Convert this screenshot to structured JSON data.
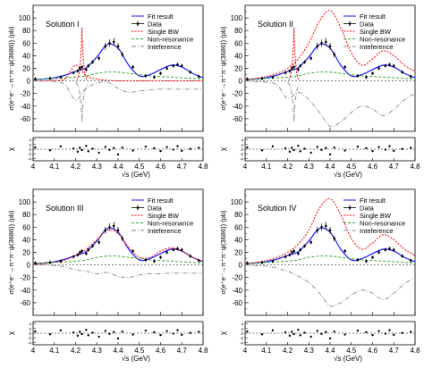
{
  "figure": {
    "legend_entries": [
      "Fit result",
      "Data",
      "Single BW",
      "Non-resonance",
      "Inteference"
    ],
    "y_label": "σ(e⁺e⁻→π⁺π⁻ψ(3686)) (pb)",
    "x_label": "√s (GeV)",
    "chi_label": "χ"
  },
  "colors": {
    "fit": "#1a1aff",
    "data": "#000000",
    "single_bw": "#ff0000",
    "non_resonance": "#33aa33",
    "interference": "#888888"
  },
  "chart_data": [
    {
      "type": "line",
      "title": "Solution I",
      "xlabel": "√s (GeV)",
      "ylabel": "σ(e⁺e⁻→π⁺π⁻ψ(3686)) (pb)",
      "xlim": [
        4.0,
        4.8
      ],
      "ylim": [
        -80,
        120
      ],
      "xticks": [
        4,
        4.1,
        4.2,
        4.3,
        4.4,
        4.5,
        4.6,
        4.7,
        4.8
      ],
      "yticks": [
        -60,
        -40,
        -20,
        0,
        20,
        40,
        60,
        80,
        100
      ],
      "legend": "top-right",
      "x": [
        4.0,
        4.05,
        4.1,
        4.15,
        4.2,
        4.25,
        4.3,
        4.35,
        4.4,
        4.45,
        4.5,
        4.55,
        4.6,
        4.65,
        4.7,
        4.75,
        4.8
      ],
      "series": [
        {
          "name": "Fit result",
          "values": [
            2,
            3,
            5,
            9,
            15,
            21,
            38,
            58,
            52,
            25,
            8,
            10,
            18,
            25,
            22,
            12,
            5
          ]
        },
        {
          "name": "Single BW",
          "values": [
            0,
            0,
            1,
            3,
            25,
            8,
            3,
            1,
            0,
            0,
            0,
            0,
            0,
            0,
            0,
            0,
            0
          ]
        },
        {
          "name": "Non-resonance",
          "values": [
            2,
            3,
            4,
            5,
            6,
            8,
            12,
            14,
            14,
            12,
            10,
            8,
            7,
            6,
            5,
            4,
            3
          ]
        },
        {
          "name": "Inteference",
          "values": [
            0,
            0,
            -1,
            -6,
            -30,
            -12,
            -4,
            -2,
            -12,
            -18,
            -16,
            -14,
            -13,
            -13,
            -13,
            -13,
            -13
          ]
        }
      ],
      "single_bw_peak": [
        4.23,
        85
      ],
      "interference_dip": [
        4.23,
        -65
      ],
      "data_points": [
        [
          4.01,
          3
        ],
        [
          4.08,
          4
        ],
        [
          4.13,
          6
        ],
        [
          4.19,
          13
        ],
        [
          4.21,
          16
        ],
        [
          4.22,
          20
        ],
        [
          4.23,
          22
        ],
        [
          4.25,
          18
        ],
        [
          4.26,
          24
        ],
        [
          4.28,
          30
        ],
        [
          4.31,
          36
        ],
        [
          4.34,
          55
        ],
        [
          4.36,
          60
        ],
        [
          4.38,
          62
        ],
        [
          4.4,
          55
        ],
        [
          4.42,
          42
        ],
        [
          4.47,
          22
        ],
        [
          4.53,
          8
        ],
        [
          4.57,
          6
        ],
        [
          4.6,
          12
        ],
        [
          4.63,
          20
        ],
        [
          4.66,
          24
        ],
        [
          4.68,
          26
        ],
        [
          4.7,
          24
        ],
        [
          4.74,
          14
        ],
        [
          4.78,
          7
        ]
      ],
      "residuals": [
        0.8,
        -0.5,
        1.2,
        0.3,
        -1.1,
        0.6,
        -0.4,
        1.4,
        -0.9,
        0.2,
        -1.5,
        1.0,
        -0.3,
        0.5,
        -2.3,
        0.7,
        -0.6,
        1.1,
        0.4,
        -0.8,
        0.9,
        -0.2,
        1.3,
        -0.7,
        0.1,
        0.6
      ]
    },
    {
      "type": "line",
      "title": "Solution II",
      "xlabel": "√s (GeV)",
      "ylabel": "σ(e⁺e⁻→π⁺π⁻ψ(3686)) (pb)",
      "xlim": [
        4.0,
        4.8
      ],
      "ylim": [
        -80,
        120
      ],
      "xticks": [
        4,
        4.1,
        4.2,
        4.3,
        4.4,
        4.5,
        4.6,
        4.7,
        4.8
      ],
      "yticks": [
        -60,
        -40,
        -20,
        0,
        20,
        40,
        60,
        80,
        100
      ],
      "legend": "top-right",
      "x": [
        4.0,
        4.05,
        4.1,
        4.15,
        4.2,
        4.25,
        4.3,
        4.35,
        4.4,
        4.45,
        4.5,
        4.55,
        4.6,
        4.65,
        4.7,
        4.75,
        4.8
      ],
      "series": [
        {
          "name": "Fit result",
          "values": [
            2,
            3,
            5,
            9,
            15,
            21,
            38,
            58,
            52,
            25,
            8,
            10,
            18,
            25,
            22,
            12,
            5
          ]
        },
        {
          "name": "Single BW",
          "values": [
            2,
            4,
            7,
            12,
            20,
            35,
            60,
            95,
            112,
            85,
            45,
            25,
            35,
            48,
            40,
            25,
            15
          ]
        },
        {
          "name": "Non-resonance",
          "values": [
            2,
            3,
            4,
            5,
            6,
            8,
            12,
            14,
            14,
            12,
            10,
            8,
            7,
            6,
            5,
            4,
            3
          ]
        },
        {
          "name": "Inteference",
          "values": [
            0,
            -1,
            -2,
            -6,
            -28,
            -18,
            -30,
            -50,
            -72,
            -65,
            -50,
            -40,
            -45,
            -55,
            -45,
            -30,
            -20
          ]
        }
      ],
      "single_bw_peak": [
        4.23,
        85
      ],
      "interference_dip": [
        4.23,
        -65
      ],
      "data_points": [
        [
          4.01,
          3
        ],
        [
          4.08,
          4
        ],
        [
          4.13,
          6
        ],
        [
          4.19,
          13
        ],
        [
          4.21,
          16
        ],
        [
          4.22,
          20
        ],
        [
          4.23,
          22
        ],
        [
          4.25,
          18
        ],
        [
          4.26,
          24
        ],
        [
          4.28,
          30
        ],
        [
          4.31,
          36
        ],
        [
          4.34,
          55
        ],
        [
          4.36,
          60
        ],
        [
          4.38,
          62
        ],
        [
          4.4,
          55
        ],
        [
          4.42,
          42
        ],
        [
          4.47,
          22
        ],
        [
          4.53,
          8
        ],
        [
          4.57,
          6
        ],
        [
          4.6,
          12
        ],
        [
          4.63,
          20
        ],
        [
          4.66,
          24
        ],
        [
          4.68,
          26
        ],
        [
          4.7,
          24
        ],
        [
          4.74,
          14
        ],
        [
          4.78,
          7
        ]
      ],
      "residuals": [
        0.8,
        -0.5,
        1.2,
        0.3,
        -1.1,
        0.6,
        -0.4,
        1.4,
        -0.9,
        0.2,
        -1.5,
        1.0,
        -0.3,
        0.5,
        -2.3,
        0.7,
        -0.6,
        1.1,
        0.4,
        -0.8,
        0.9,
        -0.2,
        1.3,
        -0.7,
        0.1,
        0.6
      ]
    },
    {
      "type": "line",
      "title": "Solution III",
      "xlabel": "√s (GeV)",
      "ylabel": "σ(e⁺e⁻→π⁺π⁻ψ(3686)) (pb)",
      "xlim": [
        4.0,
        4.8
      ],
      "ylim": [
        -80,
        120
      ],
      "xticks": [
        4,
        4.1,
        4.2,
        4.3,
        4.4,
        4.5,
        4.6,
        4.7,
        4.8
      ],
      "yticks": [
        -60,
        -40,
        -20,
        0,
        20,
        40,
        60,
        80,
        100
      ],
      "legend": "top-right",
      "x": [
        4.0,
        4.05,
        4.1,
        4.15,
        4.2,
        4.25,
        4.3,
        4.35,
        4.4,
        4.45,
        4.5,
        4.55,
        4.6,
        4.65,
        4.7,
        4.75,
        4.8
      ],
      "series": [
        {
          "name": "Fit result",
          "values": [
            2,
            3,
            5,
            9,
            15,
            21,
            38,
            58,
            52,
            25,
            8,
            10,
            18,
            25,
            22,
            12,
            5
          ]
        },
        {
          "name": "Single BW",
          "values": [
            1,
            2,
            4,
            8,
            15,
            25,
            40,
            55,
            50,
            28,
            12,
            12,
            22,
            27,
            22,
            12,
            6
          ]
        },
        {
          "name": "Non-resonance",
          "values": [
            2,
            3,
            4,
            5,
            6,
            8,
            12,
            14,
            14,
            12,
            10,
            8,
            7,
            6,
            5,
            4,
            3
          ]
        },
        {
          "name": "Inteference",
          "values": [
            0,
            0,
            -1,
            -3,
            -8,
            -10,
            -14,
            -12,
            -18,
            -20,
            -16,
            -14,
            -14,
            -13,
            -13,
            -13,
            -13
          ]
        }
      ],
      "data_points": [
        [
          4.01,
          3
        ],
        [
          4.08,
          4
        ],
        [
          4.13,
          6
        ],
        [
          4.19,
          13
        ],
        [
          4.21,
          16
        ],
        [
          4.22,
          20
        ],
        [
          4.23,
          22
        ],
        [
          4.25,
          18
        ],
        [
          4.26,
          24
        ],
        [
          4.28,
          30
        ],
        [
          4.31,
          36
        ],
        [
          4.34,
          55
        ],
        [
          4.36,
          60
        ],
        [
          4.38,
          62
        ],
        [
          4.4,
          55
        ],
        [
          4.42,
          42
        ],
        [
          4.47,
          22
        ],
        [
          4.53,
          8
        ],
        [
          4.57,
          6
        ],
        [
          4.6,
          12
        ],
        [
          4.63,
          20
        ],
        [
          4.66,
          24
        ],
        [
          4.68,
          26
        ],
        [
          4.7,
          24
        ],
        [
          4.74,
          14
        ],
        [
          4.78,
          7
        ]
      ],
      "residuals": [
        0.8,
        -0.5,
        1.2,
        0.3,
        -1.1,
        0.6,
        -0.4,
        1.4,
        -0.9,
        0.2,
        -1.5,
        1.0,
        -0.3,
        0.5,
        -2.3,
        0.7,
        -0.6,
        1.1,
        0.4,
        -0.8,
        0.9,
        -0.2,
        1.3,
        -0.7,
        0.1,
        0.6
      ]
    },
    {
      "type": "line",
      "title": "Solution IV",
      "xlabel": "√s (GeV)",
      "ylabel": "σ(e⁺e⁻→π⁺π⁻ψ(3686)) (pb)",
      "xlim": [
        4.0,
        4.8
      ],
      "ylim": [
        -80,
        120
      ],
      "xticks": [
        4,
        4.1,
        4.2,
        4.3,
        4.4,
        4.5,
        4.6,
        4.7,
        4.8
      ],
      "yticks": [
        -60,
        -40,
        -20,
        0,
        20,
        40,
        60,
        80,
        100
      ],
      "legend": "top-right",
      "x": [
        4.0,
        4.05,
        4.1,
        4.15,
        4.2,
        4.25,
        4.3,
        4.35,
        4.4,
        4.45,
        4.5,
        4.55,
        4.6,
        4.65,
        4.7,
        4.75,
        4.8
      ],
      "series": [
        {
          "name": "Fit result",
          "values": [
            2,
            3,
            5,
            9,
            15,
            21,
            38,
            58,
            52,
            25,
            8,
            10,
            18,
            25,
            22,
            12,
            5
          ]
        },
        {
          "name": "Single BW",
          "values": [
            2,
            4,
            7,
            12,
            20,
            33,
            55,
            90,
            105,
            80,
            42,
            25,
            35,
            48,
            40,
            25,
            15
          ]
        },
        {
          "name": "Non-resonance",
          "values": [
            2,
            3,
            4,
            5,
            6,
            8,
            12,
            14,
            14,
            12,
            10,
            8,
            7,
            6,
            5,
            4,
            3
          ]
        },
        {
          "name": "Inteference",
          "values": [
            0,
            -1,
            -2,
            -5,
            -10,
            -18,
            -28,
            -45,
            -65,
            -60,
            -48,
            -40,
            -45,
            -55,
            -45,
            -30,
            -20
          ]
        }
      ],
      "data_points": [
        [
          4.01,
          3
        ],
        [
          4.08,
          4
        ],
        [
          4.13,
          6
        ],
        [
          4.19,
          13
        ],
        [
          4.21,
          16
        ],
        [
          4.22,
          20
        ],
        [
          4.23,
          22
        ],
        [
          4.25,
          18
        ],
        [
          4.26,
          24
        ],
        [
          4.28,
          30
        ],
        [
          4.31,
          36
        ],
        [
          4.34,
          55
        ],
        [
          4.36,
          60
        ],
        [
          4.38,
          62
        ],
        [
          4.4,
          55
        ],
        [
          4.42,
          42
        ],
        [
          4.47,
          22
        ],
        [
          4.53,
          8
        ],
        [
          4.57,
          6
        ],
        [
          4.6,
          12
        ],
        [
          4.63,
          20
        ],
        [
          4.66,
          24
        ],
        [
          4.68,
          26
        ],
        [
          4.7,
          24
        ],
        [
          4.74,
          14
        ],
        [
          4.78,
          7
        ]
      ],
      "residuals": [
        0.8,
        -0.5,
        1.2,
        0.3,
        -1.1,
        0.6,
        -0.4,
        1.4,
        -0.9,
        0.2,
        -1.5,
        1.0,
        -0.3,
        0.5,
        -2.3,
        0.7,
        -0.6,
        1.1,
        0.4,
        -0.8,
        0.9,
        -0.2,
        1.3,
        -0.7,
        0.1,
        0.6
      ]
    }
  ]
}
